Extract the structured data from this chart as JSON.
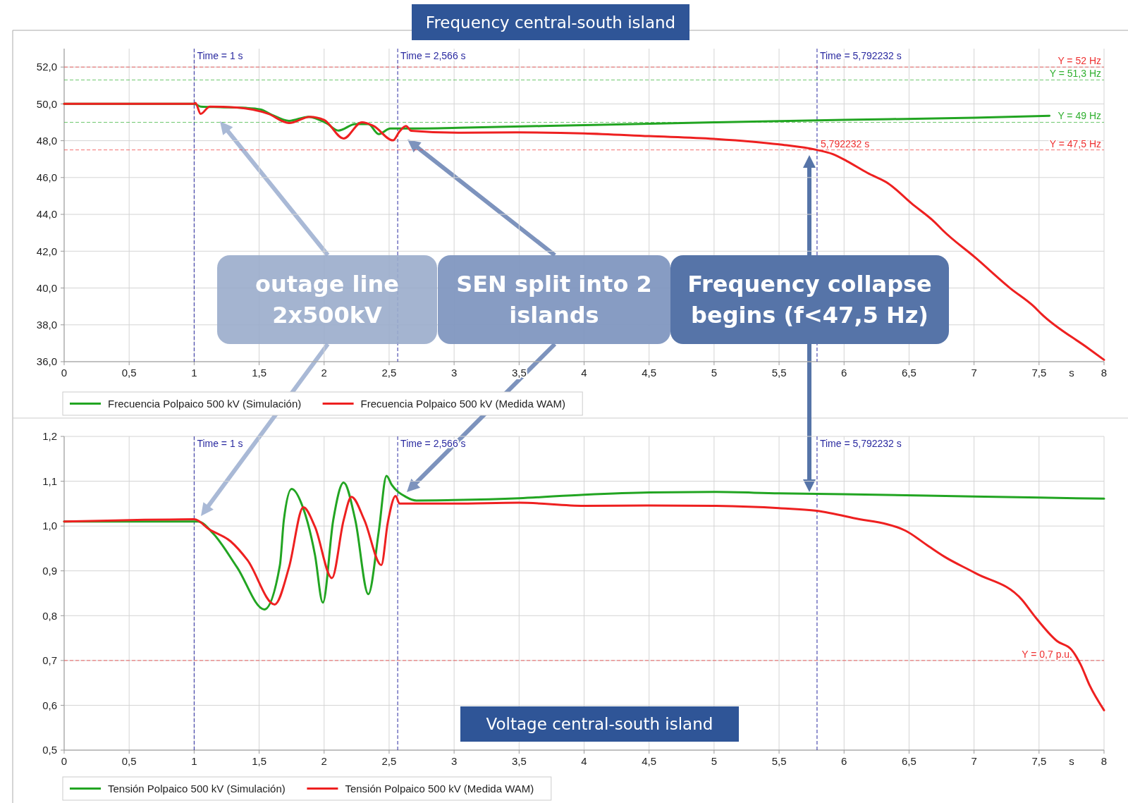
{
  "chart_data": [
    {
      "type": "line",
      "title": "Frequency central-south island",
      "xlabel": "s",
      "xlim": [
        0,
        8
      ],
      "xticks": [
        0,
        {
          "value": 0.5,
          "label": "0,5"
        },
        1,
        {
          "value": 1.5,
          "label": "1,5"
        },
        2,
        {
          "value": 2.5,
          "label": "2,5"
        },
        3,
        {
          "value": 3.5,
          "label": "3,5"
        },
        4,
        {
          "value": 4.5,
          "label": "4,5"
        },
        5,
        {
          "value": 5.5,
          "label": "5,5"
        },
        6,
        {
          "value": 6.5,
          "label": "6,5"
        },
        7,
        {
          "value": 7.5,
          "label": "7,5"
        },
        8
      ],
      "ylim": [
        36,
        53
      ],
      "yticks": [
        {
          "value": 36,
          "label": "36,0"
        },
        {
          "value": 38,
          "label": "38,0"
        },
        {
          "value": 40,
          "label": "40,0"
        },
        {
          "value": 42,
          "label": "42,0"
        },
        {
          "value": 44,
          "label": "44,0"
        },
        {
          "value": 46,
          "label": "46,0"
        },
        {
          "value": 48,
          "label": "48,0"
        },
        {
          "value": 50,
          "label": "50,0"
        },
        {
          "value": 52,
          "label": "52,0"
        }
      ],
      "grid": true,
      "legend": "bottom",
      "series": [
        {
          "name": "Frecuencia Polpaico 500 kV (Simulación)",
          "color": "#22a522",
          "x": [
            0,
            1,
            1.05,
            1.2,
            1.4,
            1.51,
            1.6,
            1.73,
            1.88,
            2.02,
            2.11,
            2.24,
            2.34,
            2.42,
            2.51,
            2.6,
            3.03,
            4,
            5,
            6,
            7,
            7.58
          ],
          "values": [
            50,
            50,
            49.85,
            49.82,
            49.78,
            49.7,
            49.4,
            49.08,
            49.3,
            48.94,
            48.55,
            48.9,
            48.9,
            48.36,
            48.66,
            48.66,
            48.7,
            48.85,
            49,
            49.13,
            49.25,
            49.35
          ]
        },
        {
          "name": "Frecuencia Polpaico 500 kV (Medida WAM)",
          "color": "#ee2020",
          "x": [
            0,
            1,
            1.01,
            1.05,
            1.12,
            1.33,
            1.57,
            1.73,
            1.89,
            2,
            2.15,
            2.29,
            2.38,
            2.53,
            2.58,
            2.63,
            2.67,
            3.03,
            3.5,
            4,
            4.5,
            5,
            5.5,
            5.79,
            5.91,
            6.02,
            6.18,
            6.34,
            6.52,
            6.7,
            6.76,
            7.01,
            7.28,
            7.46,
            7.52,
            7.88,
            8
          ],
          "values": [
            50,
            50,
            50.05,
            49.46,
            49.85,
            49.8,
            49.46,
            48.96,
            49.3,
            49.13,
            48.12,
            49,
            48.8,
            48.02,
            48.5,
            48.8,
            48.54,
            48.43,
            48.45,
            48.4,
            48.25,
            48.1,
            47.8,
            47.5,
            47.28,
            46.9,
            46.25,
            45.68,
            44.59,
            43.56,
            43.13,
            41.65,
            39.98,
            39,
            38.58,
            36.72,
            36.1
          ]
        }
      ],
      "ref_lines": [
        {
          "axis": "x",
          "value": 1,
          "label": "Time = 1 s",
          "color": "#2a2aa0",
          "line_style": "dashed"
        },
        {
          "axis": "x",
          "value": 2.566,
          "label": "Time = 2,566 s",
          "color": "#2a2aa0",
          "line_style": "dashed"
        },
        {
          "axis": "x",
          "value": 5.792232,
          "label": "Time = 5,792232 s",
          "color": "#2a2aa0",
          "line_style": "dashed"
        },
        {
          "axis": "y",
          "value": 52,
          "label": "Y = 52 Hz",
          "color": "#ee3030",
          "line_style": "dashed"
        },
        {
          "axis": "y",
          "value": 51.3,
          "label": "Y = 51,3 Hz",
          "color": "#30b030",
          "line_style": "dashed"
        },
        {
          "axis": "y",
          "value": 49,
          "label": "Y = 49 Hz",
          "color": "#30b030",
          "line_style": "dashed"
        },
        {
          "axis": "y",
          "value": 47.5,
          "label": "Y = 47,5 Hz",
          "color": "#ee3030",
          "line_style": "dashed"
        }
      ],
      "annotations": [
        {
          "text": "5,792232 s",
          "x": 5.792232,
          "y": 47.5
        },
        "outage line 2x500kV",
        "SEN split into 2 islands",
        "Frequency collapse begins (f<47,5 Hz)"
      ]
    },
    {
      "type": "line",
      "title": "Voltage central-south island",
      "xlabel": "s",
      "xlim": [
        0,
        8
      ],
      "xticks": [
        0,
        {
          "value": 0.5,
          "label": "0,5"
        },
        1,
        {
          "value": 1.5,
          "label": "1,5"
        },
        2,
        {
          "value": 2.5,
          "label": "2,5"
        },
        3,
        {
          "value": 3.5,
          "label": "3,5"
        },
        4,
        {
          "value": 4.5,
          "label": "4,5"
        },
        5,
        {
          "value": 5.5,
          "label": "5,5"
        },
        6,
        {
          "value": 6.5,
          "label": "6,5"
        },
        7,
        {
          "value": 7.5,
          "label": "7,5"
        },
        8
      ],
      "ylim": [
        0.5,
        1.2
      ],
      "yticks": [
        {
          "value": 0.5,
          "label": "0,5"
        },
        {
          "value": 0.6,
          "label": "0,6"
        },
        {
          "value": 0.7,
          "label": "0,7"
        },
        {
          "value": 0.8,
          "label": "0,8"
        },
        {
          "value": 0.9,
          "label": "0,9"
        },
        {
          "value": 1.0,
          "label": "1,0"
        },
        {
          "value": 1.1,
          "label": "1,1"
        },
        {
          "value": 1.2,
          "label": "1,2"
        }
      ],
      "grid": true,
      "legend": "bottom",
      "series": [
        {
          "name": "Tensión Polpaico 500 kV (Simulación)",
          "color": "#22a522",
          "x": [
            0,
            1,
            1.03,
            1.15,
            1.33,
            1.54,
            1.66,
            1.69,
            1.75,
            1.84,
            1.93,
            1.99,
            2.07,
            2.15,
            2.24,
            2.34,
            2.42,
            2.48,
            2.52,
            2.63,
            2.71,
            3,
            3.5,
            4,
            4.5,
            5,
            5.5,
            6,
            7,
            8
          ],
          "values": [
            1.01,
            1.01,
            1.01,
            0.982,
            0.908,
            0.814,
            0.913,
            1.013,
            1.083,
            1.039,
            0.935,
            0.829,
            1.013,
            1.097,
            1.013,
            0.848,
            0.987,
            1.112,
            1.092,
            1.065,
            1.057,
            1.058,
            1.062,
            1.07,
            1.075,
            1.076,
            1.073,
            1.071,
            1.066,
            1.061
          ]
        },
        {
          "name": "Tensión Polpaico 500 kV (Medida WAM)",
          "color": "#ee2020",
          "x": [
            0,
            1,
            1.12,
            1.28,
            1.41,
            1.62,
            1.73,
            1.84,
            1.93,
            2.06,
            2.15,
            2.21,
            2.31,
            2.44,
            2.49,
            2.55,
            2.58,
            2.71,
            3,
            3.5,
            4,
            4.5,
            5,
            5.5,
            5.79,
            6.07,
            6.47,
            6.65,
            6.77,
            7.01,
            7.37,
            7.46,
            7.64,
            7.75,
            7.82,
            7.89,
            8
          ],
          "values": [
            1.01,
            1.015,
            0.992,
            0.966,
            0.924,
            0.825,
            0.908,
            1.042,
            0.998,
            0.884,
            1.013,
            1.065,
            1.013,
            0.913,
            1.008,
            1.067,
            1.05,
            1.05,
            1.05,
            1.052,
            1.045,
            1.046,
            1.045,
            1.04,
            1.034,
            1.018,
            0.99,
            0.955,
            0.932,
            0.895,
            0.835,
            0.801,
            0.743,
            0.724,
            0.691,
            0.644,
            0.589
          ]
        }
      ],
      "ref_lines": [
        {
          "axis": "x",
          "value": 1,
          "label": "Time = 1 s",
          "color": "#2a2aa0",
          "line_style": "dashed"
        },
        {
          "axis": "x",
          "value": 2.566,
          "label": "Time = 2,566 s",
          "color": "#2a2aa0",
          "line_style": "dashed"
        },
        {
          "axis": "x",
          "value": 5.792232,
          "label": "Time = 5,792232 s",
          "color": "#2a2aa0",
          "line_style": "dashed"
        },
        {
          "axis": "y",
          "value": 0.7,
          "label": "Y = 0,7 p.u.",
          "color": "#ee3030",
          "line_style": "dashed"
        }
      ]
    }
  ]
}
